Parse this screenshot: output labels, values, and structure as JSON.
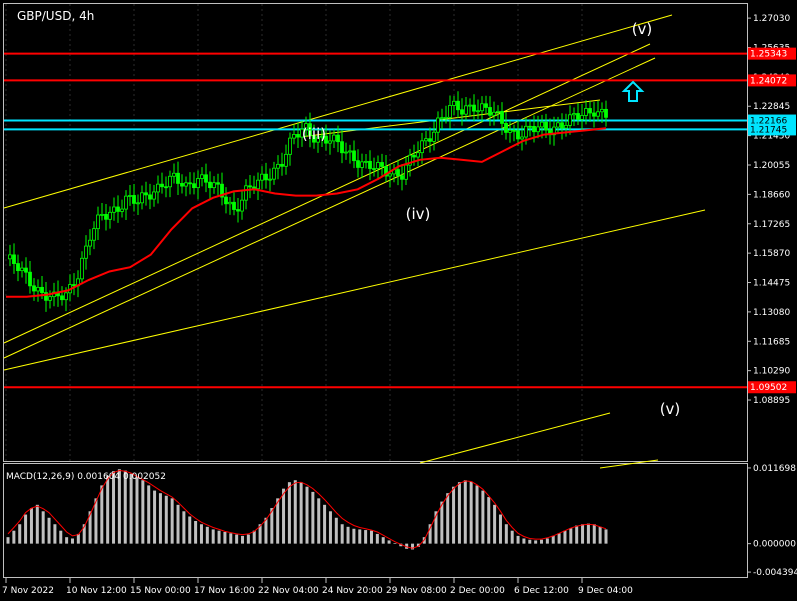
{
  "chart_data": [
    {
      "type": "candlestick",
      "title": "GBP/USD, 4h",
      "ylim": [
        1.06,
        1.277
      ],
      "y_ticks": [
        "1.27030",
        "1.25635",
        "1.24240",
        "1.22845",
        "1.21450",
        "1.20055",
        "1.18660",
        "1.17265",
        "1.15870",
        "1.14475",
        "1.13080",
        "1.11685",
        "1.10290",
        "1.08895"
      ],
      "x_ticks": [
        "7 Nov 2022",
        "10 Nov 12:00",
        "15 Nov 00:00",
        "17 Nov 16:00",
        "22 Nov 04:00",
        "24 Nov 20:00",
        "29 Nov 08:00",
        "2 Dec 00:00",
        "6 Dec 12:00",
        "9 Dec 04:00"
      ],
      "horizontal_levels": [
        {
          "value": 1.25343,
          "label": "1.25343",
          "color": "#ff0000"
        },
        {
          "value": 1.24072,
          "label": "1.24072",
          "color": "#ff0000"
        },
        {
          "value": 1.22166,
          "label": "1.22166",
          "color": "#00e5ff"
        },
        {
          "value": 1.21745,
          "label": "1.21745",
          "color": "#00e5ff"
        },
        {
          "value": 1.09502,
          "label": "1.09502",
          "color": "#ff0000"
        }
      ],
      "wave_labels": [
        "(iii)",
        "(iv)",
        "(v)",
        "(v)"
      ],
      "price_close_path": [
        1.156,
        1.151,
        1.146,
        1.14,
        1.136,
        1.139,
        1.15,
        1.166,
        1.176,
        1.18,
        1.184,
        1.182,
        1.188,
        1.192,
        1.193,
        1.19,
        1.196,
        1.191,
        1.186,
        1.18,
        1.188,
        1.191,
        1.197,
        1.203,
        1.213,
        1.218,
        1.214,
        1.212,
        1.208,
        1.205,
        1.2,
        1.198,
        1.198,
        1.197,
        1.204,
        1.212,
        1.222,
        1.227,
        1.226,
        1.23,
        1.227,
        1.222,
        1.217,
        1.216,
        1.217,
        1.218,
        1.22,
        1.221,
        1.224,
        1.228,
        1.224
      ],
      "moving_average_path": [
        1.138,
        1.138,
        1.139,
        1.141,
        1.146,
        1.15,
        1.152,
        1.158,
        1.17,
        1.18,
        1.185,
        1.188,
        1.189,
        1.187,
        1.186,
        1.186,
        1.187,
        1.189,
        1.194,
        1.2,
        1.203,
        1.204,
        1.203,
        1.202,
        1.207,
        1.212,
        1.215,
        1.216,
        1.217,
        1.218
      ],
      "colors": {
        "bull": "#00ff00",
        "bear": "#00ff00",
        "ma": "#ff0000",
        "trend": "#ffff00",
        "grid": "#2c2c2c",
        "arrow": "#00e5ff"
      }
    },
    {
      "type": "histogram",
      "title": "MACD(12,26,9) 0.001604 0.002052",
      "ylim": [
        -0.005,
        0.012
      ],
      "y_ticks": [
        "0.011698",
        "0.000000",
        "-0.004394"
      ],
      "histogram": [
        0.001,
        0.002,
        0.003,
        0.0045,
        0.0055,
        0.006,
        0.005,
        0.004,
        0.003,
        0.002,
        0.001,
        0.0008,
        0.0015,
        0.003,
        0.005,
        0.007,
        0.009,
        0.0105,
        0.0112,
        0.0115,
        0.0113,
        0.0108,
        0.0103,
        0.0098,
        0.009,
        0.0082,
        0.0078,
        0.0074,
        0.007,
        0.006,
        0.005,
        0.0042,
        0.0035,
        0.003,
        0.0026,
        0.0022,
        0.002,
        0.0018,
        0.0016,
        0.0014,
        0.0012,
        0.0014,
        0.002,
        0.003,
        0.004,
        0.0055,
        0.007,
        0.0085,
        0.0095,
        0.0098,
        0.0095,
        0.0088,
        0.008,
        0.007,
        0.006,
        0.005,
        0.004,
        0.003,
        0.0026,
        0.0023,
        0.0022,
        0.0021,
        0.002,
        0.0015,
        0.001,
        0.0005,
        0.0001,
        -0.0004,
        -0.0008,
        -0.0009,
        -0.0005,
        0.001,
        0.003,
        0.005,
        0.0065,
        0.0078,
        0.0088,
        0.0095,
        0.0098,
        0.0096,
        0.009,
        0.0082,
        0.0072,
        0.006,
        0.0045,
        0.003,
        0.002,
        0.0012,
        0.0008,
        0.0006,
        0.0005,
        0.0006,
        0.0008,
        0.0012,
        0.0016,
        0.002,
        0.0024,
        0.0028,
        0.003,
        0.0031,
        0.003,
        0.0026,
        0.0022
      ],
      "signal": [
        0.0015,
        0.0025,
        0.0035,
        0.0048,
        0.0055,
        0.0058,
        0.0054,
        0.0048,
        0.0038,
        0.0028,
        0.0018,
        0.0012,
        0.0014,
        0.0026,
        0.0045,
        0.0065,
        0.0085,
        0.01,
        0.011,
        0.0113,
        0.0112,
        0.0109,
        0.0104,
        0.0099,
        0.0094,
        0.0088,
        0.0082,
        0.0077,
        0.0072,
        0.0064,
        0.0055,
        0.0046,
        0.0039,
        0.0033,
        0.0029,
        0.0025,
        0.0022,
        0.0019,
        0.0017,
        0.0015,
        0.0014,
        0.0015,
        0.0019,
        0.0027,
        0.0037,
        0.005,
        0.0064,
        0.0077,
        0.0088,
        0.0094,
        0.0095,
        0.0091,
        0.0085,
        0.0077,
        0.0068,
        0.0058,
        0.0048,
        0.0039,
        0.0033,
        0.0028,
        0.0025,
        0.0023,
        0.0021,
        0.0018,
        0.0013,
        0.0008,
        0.0003,
        -0.0001,
        -0.0005,
        -0.0007,
        -0.0004,
        0.0006,
        0.0024,
        0.0043,
        0.006,
        0.0074,
        0.0085,
        0.0093,
        0.0097,
        0.0096,
        0.0091,
        0.0084,
        0.0074,
        0.0063,
        0.005,
        0.0036,
        0.0025,
        0.0016,
        0.0011,
        0.0008,
        0.0007,
        0.0007,
        0.0009,
        0.0012,
        0.0016,
        0.002,
        0.0024,
        0.0027,
        0.0029,
        0.003,
        0.0029,
        0.0026,
        0.0023
      ],
      "colors": {
        "bar": "#c0c0c0",
        "signal": "#ff0000"
      }
    }
  ]
}
